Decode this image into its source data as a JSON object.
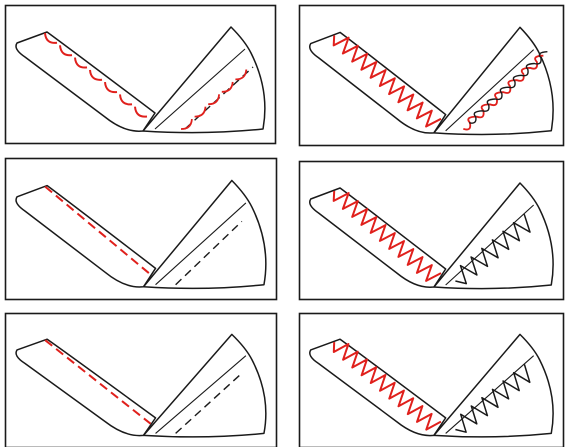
{
  "figure": {
    "panel_count": 6,
    "columns": 2,
    "rows": 3,
    "colors": {
      "frame": "#1a1a1a",
      "outline": "#1a1a1a",
      "red_stitch": "#e0201c",
      "black_stitch": "#1a1a1a",
      "background": "#ffffff"
    },
    "panels": [
      {
        "id": "dashed-scallop",
        "row": 1,
        "col": 1,
        "left_stitch": "scallop",
        "right_stitch": "scallop",
        "right_color": "red-and-black"
      },
      {
        "id": "zigzag-loop",
        "row": 1,
        "col": 2,
        "left_stitch": "zigzag",
        "right_stitch": "loops",
        "right_color": "red-and-black"
      },
      {
        "id": "straight-dashed",
        "row": 2,
        "col": 1,
        "left_stitch": "dashed-straight",
        "right_stitch": "dashed-double",
        "right_color": "black"
      },
      {
        "id": "zigzag-zigzag",
        "row": 2,
        "col": 2,
        "left_stitch": "zigzag",
        "right_stitch": "zigzag",
        "right_color": "black"
      },
      {
        "id": "dashed-dashed",
        "row": 3,
        "col": 1,
        "left_stitch": "dashed-straight",
        "right_stitch": "dashed-double",
        "right_color": "black"
      },
      {
        "id": "zigzag-zigzag-2",
        "row": 3,
        "col": 2,
        "left_stitch": "zigzag",
        "right_stitch": "zigzag",
        "right_color": "black"
      }
    ]
  }
}
